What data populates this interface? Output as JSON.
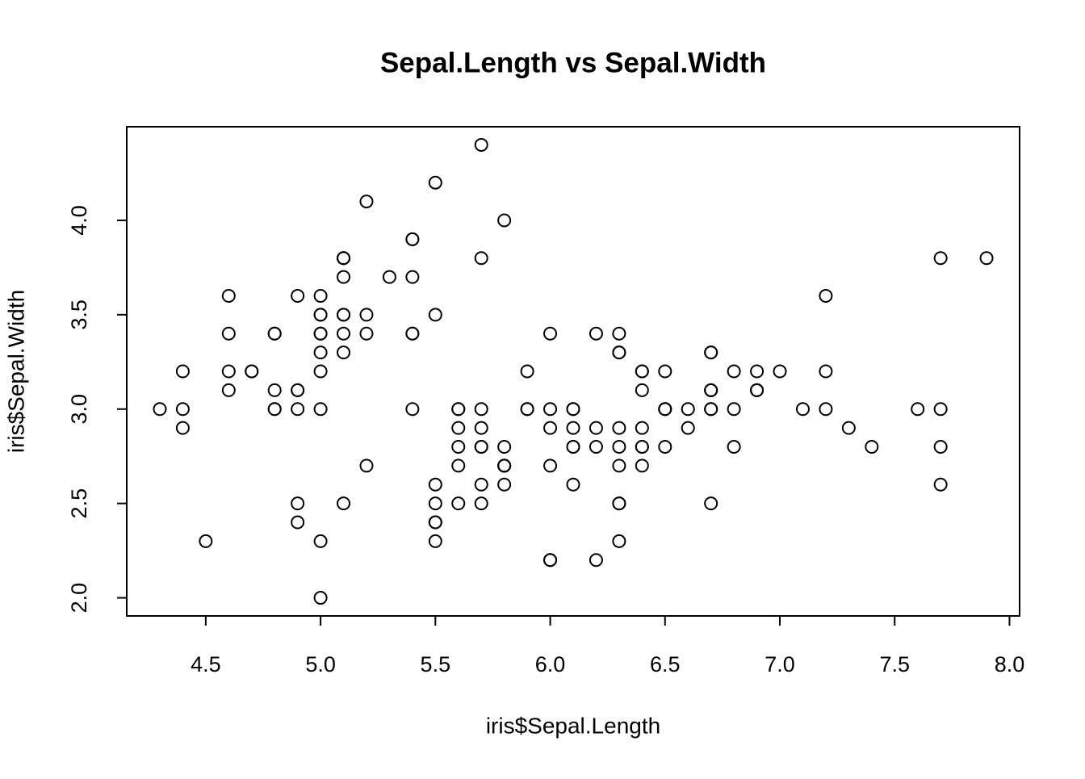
{
  "chart_data": {
    "type": "scatter",
    "title": "Sepal.Length vs Sepal.Width",
    "x_label": "iris$Sepal.Length",
    "y_label": "iris$Sepal.Width",
    "color": "#000000",
    "x": [
      5.1,
      4.9,
      4.7,
      4.6,
      5.0,
      5.4,
      4.6,
      5.0,
      4.4,
      4.9,
      5.4,
      4.8,
      4.8,
      4.3,
      5.8,
      5.7,
      5.4,
      5.1,
      5.7,
      5.1,
      5.4,
      5.1,
      4.6,
      5.1,
      4.8,
      5.0,
      5.0,
      5.2,
      5.2,
      4.7,
      4.8,
      5.4,
      5.2,
      5.5,
      4.9,
      5.0,
      5.5,
      4.9,
      4.4,
      5.1,
      5.0,
      4.5,
      4.4,
      5.0,
      5.1,
      4.8,
      5.1,
      4.6,
      5.3,
      5.0,
      7.0,
      6.4,
      6.9,
      5.5,
      6.5,
      5.7,
      6.3,
      4.9,
      6.6,
      5.2,
      5.0,
      5.9,
      6.0,
      6.1,
      5.6,
      6.7,
      5.6,
      5.8,
      6.2,
      5.6,
      5.9,
      6.1,
      6.3,
      6.1,
      6.4,
      6.6,
      6.8,
      6.7,
      6.0,
      5.7,
      5.5,
      5.5,
      5.8,
      6.0,
      5.4,
      6.0,
      6.7,
      6.3,
      5.6,
      5.5,
      5.5,
      6.1,
      5.8,
      5.0,
      5.6,
      5.7,
      5.7,
      6.2,
      5.1,
      5.7,
      6.3,
      5.8,
      7.1,
      6.3,
      6.5,
      7.6,
      4.9,
      7.3,
      6.7,
      7.2,
      6.5,
      6.4,
      6.8,
      5.7,
      5.8,
      6.4,
      6.5,
      7.7,
      7.7,
      6.0,
      6.9,
      5.6,
      7.7,
      6.3,
      6.7,
      7.2,
      6.2,
      6.1,
      6.4,
      7.2,
      7.4,
      7.9,
      6.4,
      6.3,
      6.1,
      7.7,
      6.3,
      6.4,
      6.0,
      6.9,
      6.7,
      6.9,
      5.8,
      6.8,
      6.7,
      6.7,
      6.3,
      6.5,
      6.2,
      5.9
    ],
    "y": [
      3.5,
      3.0,
      3.2,
      3.1,
      3.6,
      3.9,
      3.4,
      3.4,
      2.9,
      3.1,
      3.7,
      3.4,
      3.0,
      3.0,
      4.0,
      4.4,
      3.9,
      3.5,
      3.8,
      3.8,
      3.4,
      3.7,
      3.6,
      3.3,
      3.4,
      3.0,
      3.4,
      3.5,
      3.4,
      3.2,
      3.1,
      3.4,
      4.1,
      4.2,
      3.1,
      3.2,
      3.5,
      3.6,
      3.0,
      3.4,
      3.5,
      2.3,
      3.2,
      3.5,
      3.8,
      3.0,
      3.8,
      3.2,
      3.7,
      3.3,
      3.2,
      3.2,
      3.1,
      2.3,
      2.8,
      2.8,
      3.3,
      2.4,
      2.9,
      2.7,
      2.0,
      3.0,
      2.2,
      2.9,
      2.9,
      3.1,
      3.0,
      2.7,
      2.2,
      2.5,
      3.2,
      2.8,
      2.5,
      2.8,
      2.9,
      3.0,
      2.8,
      3.0,
      2.9,
      2.6,
      2.4,
      2.4,
      2.7,
      2.7,
      3.0,
      3.4,
      3.1,
      2.3,
      3.0,
      2.5,
      2.6,
      3.0,
      2.6,
      2.3,
      2.7,
      3.0,
      2.9,
      2.9,
      2.5,
      2.8,
      3.3,
      2.7,
      3.0,
      2.9,
      3.0,
      3.0,
      2.5,
      2.9,
      2.5,
      3.6,
      3.2,
      2.7,
      3.0,
      2.5,
      2.8,
      3.2,
      3.0,
      3.8,
      2.6,
      2.2,
      3.2,
      2.8,
      2.8,
      2.7,
      3.3,
      3.2,
      2.8,
      3.0,
      2.8,
      3.0,
      2.8,
      3.8,
      2.8,
      2.8,
      2.6,
      3.0,
      3.4,
      3.1,
      3.0,
      3.1,
      3.1,
      3.1,
      2.7,
      3.2,
      3.3,
      3.0,
      2.5,
      3.0,
      3.4,
      3.0
    ],
    "xlim": [
      4.156,
      8.044
    ],
    "ylim": [
      1.904,
      4.496
    ],
    "xticks": [
      {
        "value": 4.5,
        "label": "4.5"
      },
      {
        "value": 5,
        "label": "5.0"
      },
      {
        "value": 5.5,
        "label": "5.5"
      },
      {
        "value": 6,
        "label": "6.0"
      },
      {
        "value": 6.5,
        "label": "6.5"
      },
      {
        "value": 7,
        "label": "7.0"
      },
      {
        "value": 7.5,
        "label": "7.5"
      },
      {
        "value": 8,
        "label": "8.0"
      }
    ],
    "yticks": [
      {
        "value": 2,
        "label": "2.0"
      },
      {
        "value": 2.5,
        "label": "2.5"
      },
      {
        "value": 3,
        "label": "3.0"
      },
      {
        "value": 3.5,
        "label": "3.5"
      },
      {
        "value": 4,
        "label": "4.0"
      }
    ],
    "grid": false
  }
}
